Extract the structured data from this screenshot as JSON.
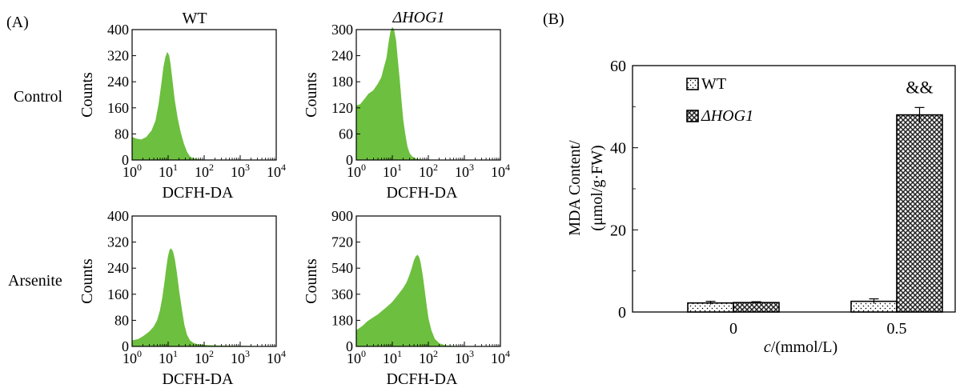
{
  "figure": {
    "panel_a_label": "(A)",
    "panel_b_label": "(B)",
    "col_titles": [
      "WT",
      "ΔHOG1"
    ],
    "row_labels": [
      "Control",
      "Arsenite"
    ],
    "histogram_ylabel": "Counts",
    "histogram_xlabel": "DCFH-DA",
    "histogram_color": "#6dbf3f"
  },
  "chart_data": [
    {
      "id": "wt-control",
      "type": "area",
      "title": "WT",
      "row": "Control",
      "xscale": "log",
      "xlim": [
        1,
        10000
      ],
      "xticks": [
        "10^0",
        "10^1",
        "10^2",
        "10^3",
        "10^4"
      ],
      "ylim": [
        0,
        400
      ],
      "yticks": [
        0,
        80,
        160,
        240,
        320,
        400
      ],
      "xlabel": "DCFH-DA",
      "ylabel": "Counts",
      "x": [
        1,
        1.3,
        1.8,
        2.5,
        3.5,
        4.5,
        5.5,
        6.5,
        7.5,
        8.5,
        9.5,
        10.5,
        11.5,
        13,
        15,
        18,
        22,
        27,
        33,
        40,
        50,
        65,
        80,
        100,
        150,
        10000
      ],
      "y": [
        70,
        65,
        62,
        70,
        90,
        120,
        170,
        230,
        285,
        315,
        330,
        320,
        295,
        245,
        185,
        130,
        85,
        50,
        25,
        10,
        5,
        2,
        1,
        0,
        0,
        0
      ]
    },
    {
      "id": "hog1-control",
      "type": "area",
      "title": "ΔHOG1",
      "row": "Control",
      "xscale": "log",
      "xlim": [
        1,
        10000
      ],
      "xticks": [
        "10^0",
        "10^1",
        "10^2",
        "10^3",
        "10^4"
      ],
      "ylim": [
        0,
        300
      ],
      "yticks": [
        0,
        60,
        120,
        180,
        240,
        300
      ],
      "xlabel": "DCFH-DA",
      "ylabel": "Counts",
      "x": [
        1,
        1.3,
        1.7,
        2.2,
        3,
        4,
        5,
        6,
        7,
        8,
        9,
        10,
        11,
        12.5,
        14,
        16,
        18,
        20,
        23,
        26,
        30,
        35,
        42,
        50,
        60,
        80,
        100,
        10000
      ],
      "y": [
        125,
        128,
        140,
        152,
        160,
        175,
        190,
        215,
        235,
        270,
        295,
        305,
        300,
        275,
        230,
        180,
        130,
        90,
        55,
        30,
        15,
        8,
        4,
        2,
        1,
        0,
        0,
        0
      ]
    },
    {
      "id": "wt-arsenite",
      "type": "area",
      "title": "WT",
      "row": "Arsenite",
      "xscale": "log",
      "xlim": [
        1,
        10000
      ],
      "xticks": [
        "10^0",
        "10^1",
        "10^2",
        "10^3",
        "10^4"
      ],
      "ylim": [
        0,
        400
      ],
      "yticks": [
        0,
        80,
        160,
        240,
        320,
        400
      ],
      "xlabel": "DCFH-DA",
      "ylabel": "Counts",
      "x": [
        1,
        1.5,
        2,
        3,
        4,
        5,
        6,
        7,
        8,
        9,
        10,
        11,
        12,
        13.5,
        15,
        17,
        20,
        24,
        28,
        33,
        40,
        50,
        65,
        80,
        100,
        150,
        300,
        1000,
        10000
      ],
      "y": [
        18,
        22,
        30,
        45,
        60,
        80,
        110,
        150,
        195,
        240,
        275,
        295,
        300,
        290,
        270,
        230,
        170,
        110,
        65,
        35,
        18,
        10,
        6,
        5,
        4,
        3,
        2,
        1,
        0
      ]
    },
    {
      "id": "hog1-arsenite",
      "type": "area",
      "title": "ΔHOG1",
      "row": "Arsenite",
      "xscale": "log",
      "xlim": [
        1,
        10000
      ],
      "xticks": [
        "10^0",
        "10^1",
        "10^2",
        "10^3",
        "10^4"
      ],
      "ylim": [
        0,
        900
      ],
      "yticks": [
        0,
        180,
        360,
        540,
        720,
        900
      ],
      "xlabel": "DCFH-DA",
      "ylabel": "Counts",
      "x": [
        1,
        1.5,
        2,
        3,
        4,
        5,
        7,
        10,
        14,
        20,
        25,
        30,
        35,
        40,
        45,
        50,
        55,
        60,
        70,
        80,
        90,
        100,
        120,
        150,
        200,
        300,
        500,
        1000,
        10000
      ],
      "y": [
        110,
        140,
        170,
        200,
        220,
        240,
        270,
        305,
        350,
        400,
        440,
        490,
        540,
        590,
        620,
        630,
        615,
        580,
        480,
        370,
        270,
        190,
        110,
        50,
        20,
        6,
        2,
        1,
        0
      ]
    },
    {
      "id": "mda-bars",
      "type": "bar",
      "categories": [
        "0",
        "0.5"
      ],
      "xlabel": "c/(mmol/L)",
      "ylabel": "MDA Content/ (μmol/g·FW)",
      "ylim": [
        0,
        60
      ],
      "yticks": [
        0,
        20,
        40,
        60
      ],
      "legend_position": "top-left",
      "series": [
        {
          "name": "WT",
          "values": [
            2.2,
            2.6
          ],
          "errors": [
            0.4,
            0.6
          ]
        },
        {
          "name": "ΔHOG1",
          "values": [
            2.3,
            48.0
          ],
          "errors": [
            0.2,
            1.8
          ]
        }
      ],
      "annotations": [
        {
          "category": "0.5",
          "series": "ΔHOG1",
          "text": "&&"
        }
      ]
    }
  ]
}
